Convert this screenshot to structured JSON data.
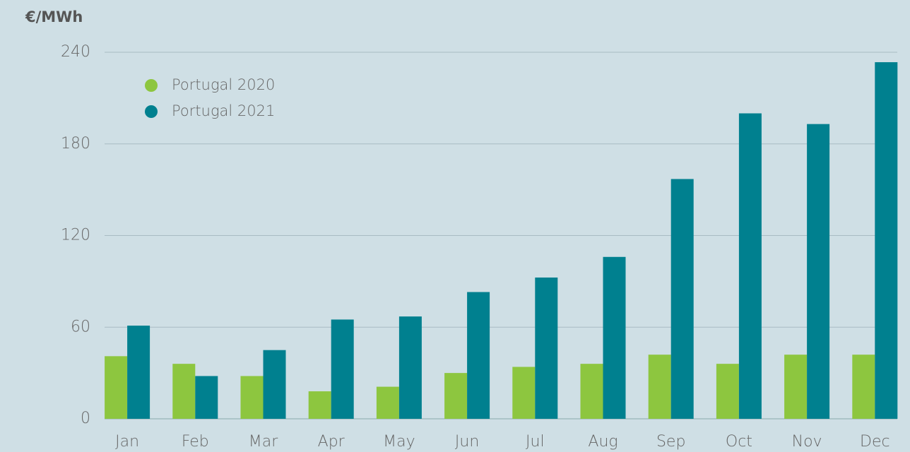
{
  "chart_data": {
    "type": "bar",
    "y_label": "€/MWh",
    "categories": [
      "Jan",
      "Feb",
      "Mar",
      "Apr",
      "May",
      "Jun",
      "Jul",
      "Aug",
      "Sep",
      "Oct",
      "Nov",
      "Dec"
    ],
    "series": [
      {
        "name": "Portugal 2020",
        "color": "#8dc63f",
        "values": [
          41,
          36,
          28,
          18,
          21,
          30,
          34,
          36,
          42,
          36,
          42,
          42
        ]
      },
      {
        "name": "Portugal 2021",
        "color": "#00808f",
        "values": [
          61,
          28,
          45,
          65,
          67,
          83,
          92.5,
          106,
          157,
          200,
          193,
          233.5
        ]
      }
    ],
    "ylim": [
      0,
      240
    ],
    "yticks": [
      0,
      60,
      120,
      180,
      240
    ],
    "grid": true,
    "legend": "top-left"
  }
}
